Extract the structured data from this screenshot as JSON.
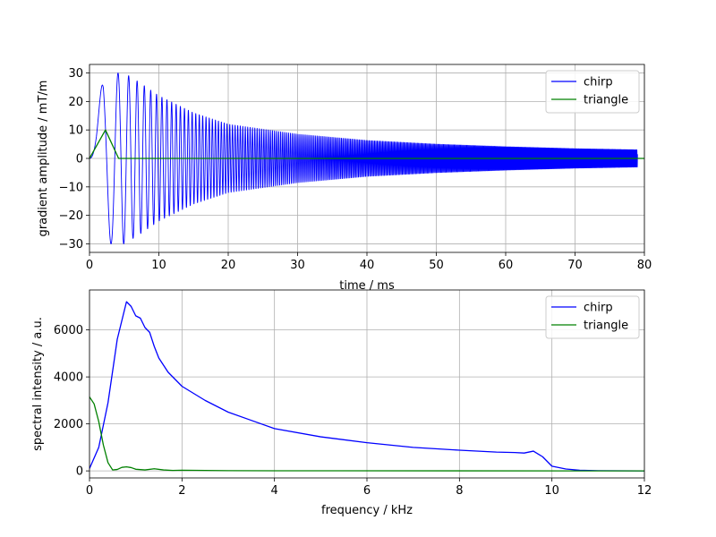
{
  "chart_data": [
    {
      "type": "line",
      "xlabel": "time / ms",
      "ylabel": "gradient amplitude / mT/m",
      "xlim": [
        0,
        80
      ],
      "ylim": [
        -33,
        33
      ],
      "xticks": [
        "0",
        "10",
        "20",
        "30",
        "40",
        "50",
        "60",
        "70",
        "80"
      ],
      "yticks": [
        "−30",
        "−20",
        "−10",
        "0",
        "10",
        "20",
        "30"
      ],
      "grid": true,
      "legend_position": "top-right",
      "series": [
        {
          "name": "chirp",
          "color": "#0000ff",
          "description": "frequency-swept oscillation; envelope values (|amplitude| vs time)",
          "envelope_t": [
            0,
            1,
            2,
            3,
            5,
            7,
            10,
            15,
            20,
            30,
            40,
            50,
            60,
            70,
            79,
            80
          ],
          "envelope_a": [
            0,
            12,
            30,
            30,
            30,
            27,
            22,
            16,
            12,
            8.5,
            6.3,
            5.0,
            4.1,
            3.4,
            3.0,
            0
          ]
        },
        {
          "name": "triangle",
          "color": "#008000",
          "x": [
            0,
            2.3,
            4.2,
            80
          ],
          "y": [
            0,
            10,
            0,
            0
          ]
        }
      ]
    },
    {
      "type": "line",
      "xlabel": "frequency / kHz",
      "ylabel": "spectral intensity / a.u.",
      "xlim": [
        0,
        12
      ],
      "ylim": [
        -300,
        7700
      ],
      "xticks": [
        "0",
        "2",
        "4",
        "6",
        "8",
        "10",
        "12"
      ],
      "yticks": [
        "0",
        "2000",
        "4000",
        "6000"
      ],
      "grid": true,
      "legend_position": "top-right",
      "series": [
        {
          "name": "chirp",
          "color": "#0000ff",
          "x": [
            0,
            0.2,
            0.4,
            0.6,
            0.8,
            0.9,
            1.0,
            1.1,
            1.2,
            1.3,
            1.4,
            1.5,
            1.6,
            1.7,
            1.8,
            2.0,
            2.5,
            3.0,
            3.5,
            4.0,
            5.0,
            6.0,
            7.0,
            8.0,
            8.8,
            9.0,
            9.2,
            9.4,
            9.6,
            9.8,
            10.0,
            10.3,
            10.6,
            11.0,
            12.0
          ],
          "y": [
            100,
            1000,
            2900,
            5600,
            7200,
            7000,
            6600,
            6500,
            6100,
            5900,
            5300,
            4800,
            4500,
            4200,
            4000,
            3600,
            3000,
            2500,
            2150,
            1800,
            1450,
            1200,
            1000,
            880,
            800,
            790,
            780,
            760,
            840,
            600,
            200,
            80,
            30,
            10,
            0
          ]
        },
        {
          "name": "triangle",
          "color": "#008000",
          "x": [
            0,
            0.1,
            0.2,
            0.3,
            0.4,
            0.5,
            0.6,
            0.7,
            0.8,
            0.9,
            1.0,
            1.2,
            1.4,
            1.6,
            1.8,
            2.0,
            3.0,
            4.0,
            12.0
          ],
          "y": [
            3150,
            2850,
            2100,
            1100,
            350,
            40,
            60,
            150,
            170,
            140,
            70,
            40,
            90,
            40,
            20,
            30,
            10,
            5,
            0
          ]
        }
      ]
    }
  ]
}
